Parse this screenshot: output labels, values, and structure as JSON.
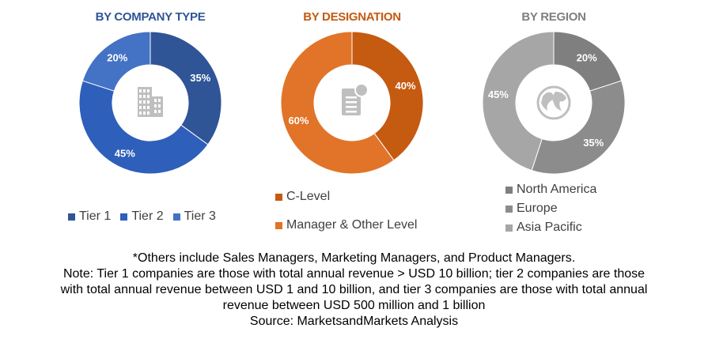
{
  "chart_data": [
    {
      "type": "pie",
      "title": "BY COMPANY TYPE",
      "categories": [
        "Tier 1",
        "Tier 2",
        "Tier 3"
      ],
      "values": [
        35,
        45,
        20
      ],
      "labels": [
        "35%",
        "45%",
        "20%"
      ],
      "colors": [
        "#2F5597",
        "#2E5FBA",
        "#4472C4"
      ],
      "legend_position": "bottom",
      "center_icon": "building-icon"
    },
    {
      "type": "pie",
      "title": "BY DESIGNATION",
      "categories": [
        "C-Level",
        "Manager & Other Level"
      ],
      "values": [
        40,
        60
      ],
      "labels": [
        "40%",
        "60%"
      ],
      "colors": [
        "#C55A11",
        "#E17428"
      ],
      "legend_position": "bottom",
      "center_icon": "document-icon"
    },
    {
      "type": "pie",
      "title": "BY REGION",
      "categories": [
        "North America",
        "Europe",
        "Asia Pacific"
      ],
      "values": [
        20,
        35,
        45
      ],
      "labels": [
        "20%",
        "35%",
        "45%"
      ],
      "colors": [
        "#7F7F7F",
        "#8C8C8C",
        "#A6A6A6"
      ],
      "legend_position": "bottom",
      "center_icon": "globe-icon"
    }
  ],
  "footnotes": {
    "others": "*Others include Sales Managers, Marketing Managers, and Product Managers.",
    "note_line1": "Note: Tier 1 companies are those with total annual revenue > USD 10 billion; tier 2 companies are those",
    "note_line2": "with total annual revenue between USD 1 and 10 billion, and tier 3 companies are those with total annual",
    "note_line3": "revenue between USD 500 million and 1 billion",
    "source": "Source: MarketsandMarkets Analysis"
  }
}
